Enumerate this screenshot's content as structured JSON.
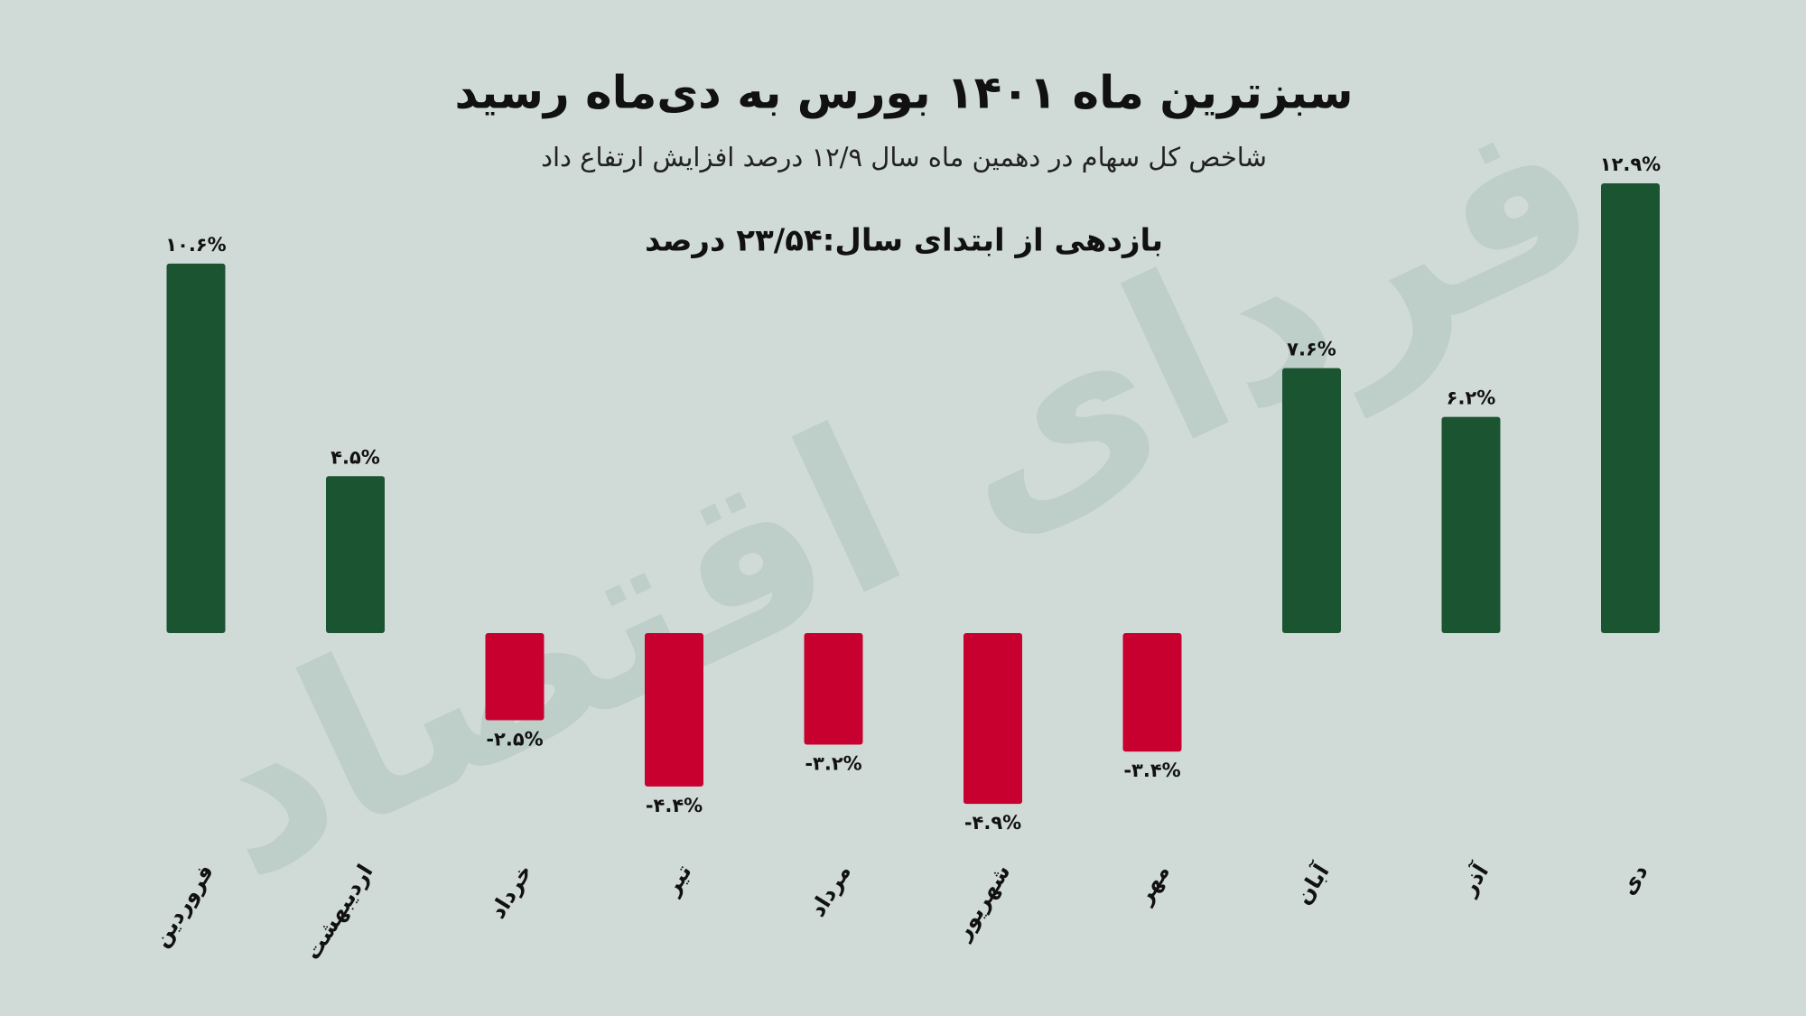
{
  "chart_data": {
    "type": "bar",
    "title": "سبزترین ماه ۱۴۰۱ بورس به دی‌ماه رسید",
    "subtitle": "شاخص کل سهام در دهمین ماه سال ۱۲/۹ درصد افزایش ارتفاع داد",
    "annotation": "بازدهی از ابتدای سال:۲۳/۵۴ درصد",
    "watermark": "فردای اقتصاد",
    "categories": [
      "فروردین",
      "اردیبهشت",
      "خرداد",
      "تیر",
      "مرداد",
      "شهریور",
      "مهر",
      "آبان",
      "آذر",
      "دی"
    ],
    "values": [
      10.6,
      4.5,
      -2.5,
      -4.4,
      -3.2,
      -4.9,
      -3.4,
      7.6,
      6.2,
      12.9
    ],
    "value_labels": [
      "۱۰.۶%",
      "۴.۵%",
      "-۲.۵%",
      "-۴.۴%",
      "-۳.۲%",
      "-۴.۹%",
      "-۳.۴%",
      "۷.۶%",
      "۶.۲%",
      "۱۲.۹%"
    ],
    "color_positive": "#1b5431",
    "color_negative": "#c8002f"
  }
}
